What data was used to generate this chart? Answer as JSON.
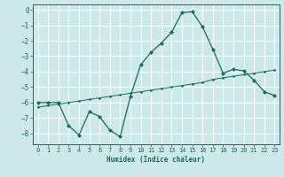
{
  "xlabel": "Humidex (Indice chaleur)",
  "xlim": [
    -0.5,
    23.5
  ],
  "ylim": [
    -8.7,
    0.35
  ],
  "xticks": [
    0,
    1,
    2,
    3,
    4,
    5,
    6,
    7,
    8,
    9,
    10,
    11,
    12,
    13,
    14,
    15,
    16,
    17,
    18,
    19,
    20,
    21,
    22,
    23
  ],
  "yticks": [
    0,
    -1,
    -2,
    -3,
    -4,
    -5,
    -6,
    -7,
    -8
  ],
  "background_color": "#cce8e8",
  "grid_color": "#ffffff",
  "line_color": "#1a6b5a",
  "series1_x": [
    0,
    1,
    2,
    3,
    4,
    5,
    6,
    7,
    8,
    9,
    10,
    11,
    12,
    13,
    14,
    15,
    16,
    17,
    18,
    19,
    20,
    21,
    22,
    23
  ],
  "series1_y": [
    -6.0,
    -6.0,
    -6.0,
    -7.5,
    -8.1,
    -6.6,
    -6.9,
    -7.8,
    -8.2,
    -5.6,
    -3.55,
    -2.75,
    -2.15,
    -1.45,
    -0.18,
    -0.12,
    -1.1,
    -2.55,
    -4.1,
    -3.85,
    -3.95,
    -4.55,
    -5.3,
    -5.55
  ],
  "series2_x": [
    0,
    1,
    2,
    3,
    4,
    5,
    6,
    7,
    8,
    9,
    10,
    11,
    12,
    13,
    14,
    15,
    16,
    17,
    18,
    19,
    20,
    21,
    22,
    23
  ],
  "series2_y": [
    -6.3,
    -6.2,
    -6.1,
    -6.0,
    -5.9,
    -5.8,
    -5.7,
    -5.6,
    -5.5,
    -5.4,
    -5.3,
    -5.2,
    -5.1,
    -5.0,
    -4.9,
    -4.8,
    -4.7,
    -4.5,
    -4.4,
    -4.3,
    -4.2,
    -4.1,
    -4.0,
    -3.9
  ]
}
